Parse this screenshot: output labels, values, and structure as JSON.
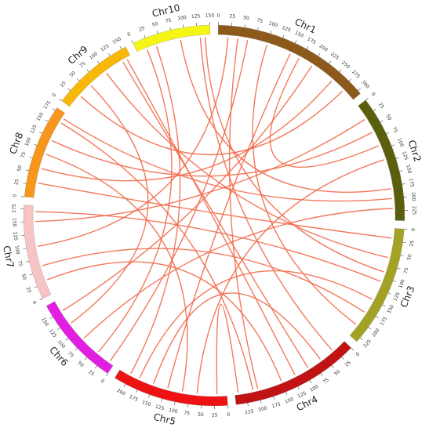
{
  "chart_data": {
    "type": "chord",
    "chromosomes": [
      {
        "name": "Chr1",
        "length": 307,
        "color": "#8e5a1c",
        "ticks": [
          0,
          25,
          50,
          75,
          100,
          125,
          150,
          175,
          200,
          225,
          250,
          275,
          300
        ]
      },
      {
        "name": "Chr2",
        "length": 244,
        "color": "#5b5e0c",
        "ticks": [
          0,
          25,
          50,
          75,
          100,
          125,
          150,
          175,
          200,
          225
        ]
      },
      {
        "name": "Chr3",
        "length": 235,
        "color": "#a3a226",
        "ticks": [
          0,
          25,
          50,
          75,
          100,
          125,
          150,
          175,
          200,
          225
        ]
      },
      {
        "name": "Chr4",
        "length": 247,
        "color": "#c01414",
        "ticks": [
          0,
          25,
          50,
          75,
          100,
          125,
          150,
          175,
          200,
          225
        ]
      },
      {
        "name": "Chr5",
        "length": 223,
        "color": "#ef1212",
        "ticks": [
          0,
          25,
          50,
          75,
          100,
          125,
          150,
          175,
          200
        ]
      },
      {
        "name": "Chr6",
        "length": 174,
        "color": "#e21fe0",
        "ticks": [
          0,
          25,
          50,
          75,
          100,
          125,
          150
        ]
      },
      {
        "name": "Chr7",
        "length": 182,
        "color": "#f6c4c4",
        "ticks": [
          0,
          25,
          50,
          75,
          100,
          125,
          150,
          175
        ]
      },
      {
        "name": "Chr8",
        "length": 181,
        "color": "#f7961a",
        "ticks": [
          0,
          25,
          50,
          75,
          100,
          125,
          150,
          175
        ]
      },
      {
        "name": "Chr9",
        "length": 159,
        "color": "#f8b80a",
        "ticks": [
          0,
          25,
          50,
          75,
          100,
          125,
          150
        ]
      },
      {
        "name": "Chr10",
        "length": 150,
        "color": "#f6f616",
        "ticks": [
          0,
          25,
          50,
          75,
          100,
          125,
          150
        ]
      }
    ],
    "link_color": "#f26a4a",
    "links": [
      {
        "from": "Chr1",
        "from_pos": 150,
        "to": "Chr5",
        "to_pos": 120
      },
      {
        "from": "Chr1",
        "from_pos": 40,
        "to": "Chr4",
        "to_pos": 200
      },
      {
        "from": "Chr1",
        "from_pos": 250,
        "to": "Chr8",
        "to_pos": 60
      },
      {
        "from": "Chr1",
        "from_pos": 280,
        "to": "Chr9",
        "to_pos": 30
      },
      {
        "from": "Chr1",
        "from_pos": 200,
        "to": "Chr6",
        "to_pos": 150
      },
      {
        "from": "Chr1",
        "from_pos": 100,
        "to": "Chr3",
        "to_pos": 210
      },
      {
        "from": "Chr1",
        "from_pos": 20,
        "to": "Chr7",
        "to_pos": 100
      },
      {
        "from": "Chr2",
        "from_pos": 30,
        "to": "Chr7",
        "to_pos": 150
      },
      {
        "from": "Chr2",
        "from_pos": 60,
        "to": "Chr8",
        "to_pos": 120
      },
      {
        "from": "Chr2",
        "from_pos": 120,
        "to": "Chr5",
        "to_pos": 60
      },
      {
        "from": "Chr2",
        "from_pos": 180,
        "to": "Chr10",
        "to_pos": 90
      },
      {
        "from": "Chr2",
        "from_pos": 220,
        "to": "Chr6",
        "to_pos": 80
      },
      {
        "from": "Chr3",
        "from_pos": 20,
        "to": "Chr8",
        "to_pos": 30
      },
      {
        "from": "Chr3",
        "from_pos": 60,
        "to": "Chr9",
        "to_pos": 100
      },
      {
        "from": "Chr3",
        "from_pos": 150,
        "to": "Chr5",
        "to_pos": 180
      },
      {
        "from": "Chr3",
        "from_pos": 180,
        "to": "Chr7",
        "to_pos": 60
      },
      {
        "from": "Chr4",
        "from_pos": 30,
        "to": "Chr10",
        "to_pos": 130
      },
      {
        "from": "Chr4",
        "from_pos": 90,
        "to": "Chr9",
        "to_pos": 140
      },
      {
        "from": "Chr4",
        "from_pos": 150,
        "to": "Chr7",
        "to_pos": 30
      },
      {
        "from": "Chr4",
        "from_pos": 210,
        "to": "Chr8",
        "to_pos": 160
      },
      {
        "from": "Chr4",
        "from_pos": 240,
        "to": "Chr5",
        "to_pos": 20
      },
      {
        "from": "Chr5",
        "from_pos": 200,
        "to": "Chr10",
        "to_pos": 40
      },
      {
        "from": "Chr5",
        "from_pos": 90,
        "to": "Chr8",
        "to_pos": 90
      },
      {
        "from": "Chr6",
        "from_pos": 40,
        "to": "Chr10",
        "to_pos": 20
      },
      {
        "from": "Chr6",
        "from_pos": 120,
        "to": "Chr9",
        "to_pos": 60
      },
      {
        "from": "Chr7",
        "from_pos": 170,
        "to": "Chr3",
        "to_pos": 110
      },
      {
        "from": "Chr8",
        "from_pos": 170,
        "to": "Chr2",
        "to_pos": 200
      },
      {
        "from": "Chr9",
        "from_pos": 150,
        "to": "Chr4",
        "to_pos": 120
      },
      {
        "from": "Chr10",
        "from_pos": 140,
        "to": "Chr3",
        "to_pos": 90
      },
      {
        "from": "Chr1",
        "from_pos": 170,
        "to": "Chr2",
        "to_pos": 90
      },
      {
        "from": "Chr5",
        "from_pos": 150,
        "to": "Chr4",
        "to_pos": 60
      },
      {
        "from": "Chr6",
        "from_pos": 10,
        "to": "Chr1",
        "to_pos": 60
      }
    ]
  }
}
